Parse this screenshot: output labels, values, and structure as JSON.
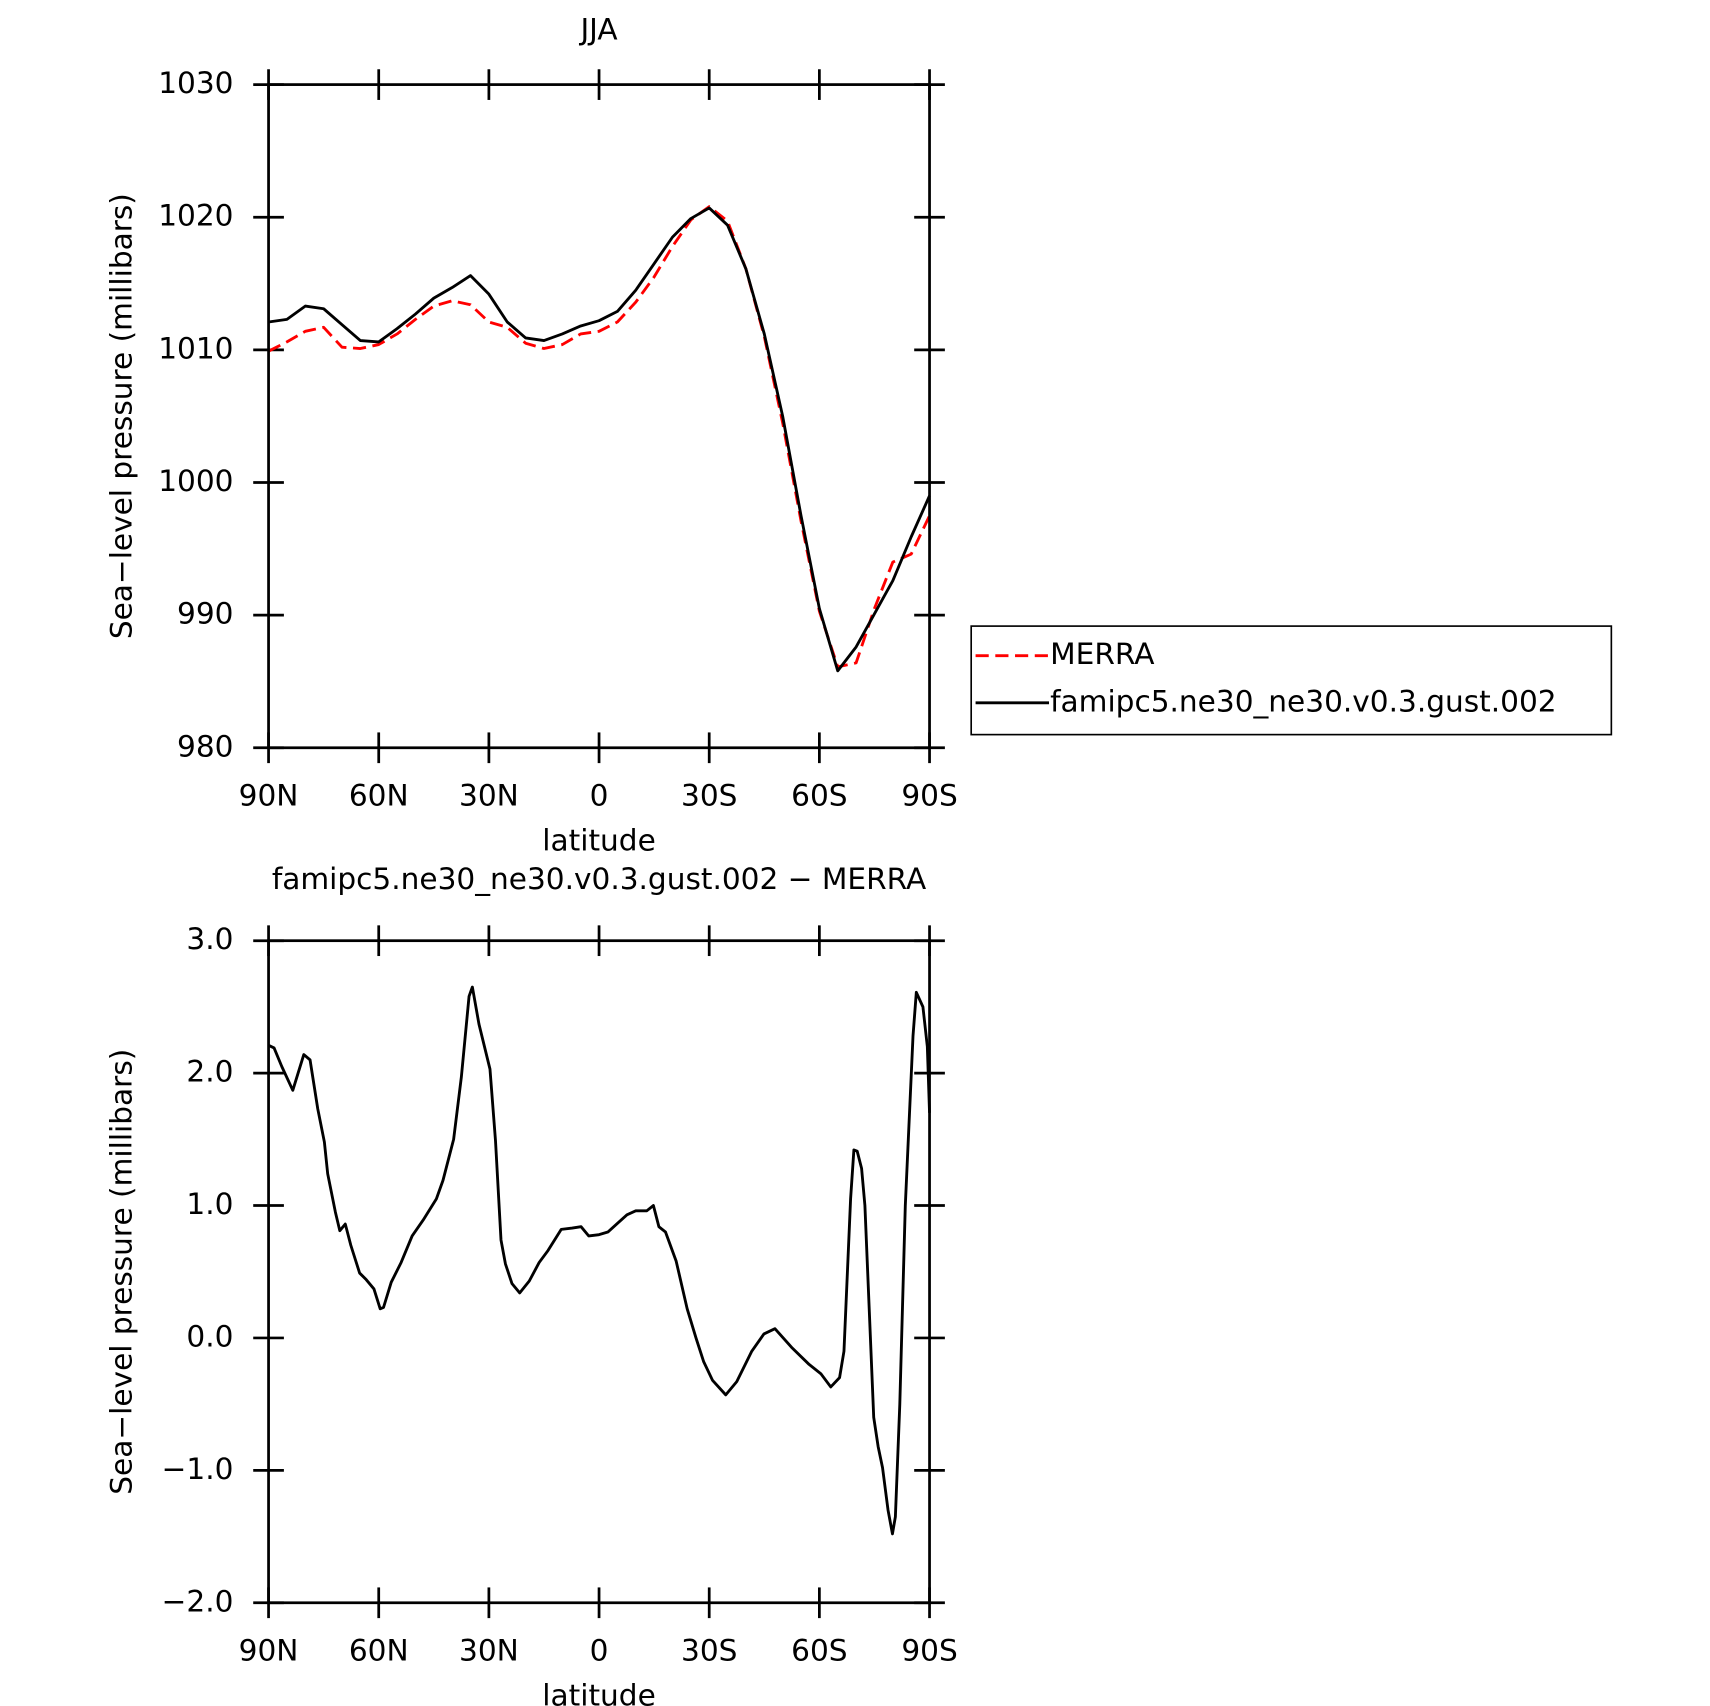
{
  "chart_data": [
    {
      "type": "line",
      "title": "JJA",
      "xlabel": "latitude",
      "ylabel": "Sea−level pressure (millibars)",
      "xlim": [
        90,
        -90
      ],
      "xticks": [
        {
          "value": 90,
          "label": "90N"
        },
        {
          "value": 60,
          "label": "60N"
        },
        {
          "value": 30,
          "label": "30N"
        },
        0,
        {
          "value": -30,
          "label": "30S"
        },
        {
          "value": -60,
          "label": "60S"
        },
        {
          "value": -90,
          "label": "90S"
        }
      ],
      "ylim": [
        980,
        1030
      ],
      "yticks": [
        980,
        990,
        1000,
        1010,
        1020,
        1030
      ],
      "legend": "right",
      "x": [
        90,
        85,
        80,
        75,
        70,
        65,
        60,
        55,
        50,
        45,
        40,
        35,
        30,
        25,
        20,
        15,
        10,
        5,
        0,
        -5,
        -10,
        -15,
        -20,
        -25,
        -30,
        -35,
        -40,
        -45,
        -50,
        -55,
        -60,
        -65,
        -70,
        -75,
        -80,
        -85,
        -90
      ],
      "series": [
        {
          "name": "MERRA",
          "color": "#ff0000",
          "dash": true,
          "values": [
            1009.9,
            1010.6,
            1011.4,
            1011.7,
            1010.2,
            1010.1,
            1010.4,
            1011.2,
            1012.3,
            1013.3,
            1013.7,
            1013.4,
            1012.1,
            1011.7,
            1010.5,
            1010.1,
            1010.4,
            1011.2,
            1011.4,
            1012.1,
            1013.6,
            1015.5,
            1017.8,
            1019.8,
            1020.8,
            1019.7,
            1016.1,
            1011.0,
            1004.5,
            997.1,
            990.3,
            986.1,
            986.4,
            990.5,
            994.0,
            994.6,
            997.5
          ]
        },
        {
          "name": "famipc5.ne30_ne30.v0.3.gust.002",
          "color": "#000000",
          "dash": false,
          "values": [
            1012.1,
            1012.3,
            1013.3,
            1013.1,
            1011.9,
            1010.7,
            1010.6,
            1011.6,
            1012.7,
            1013.9,
            1014.7,
            1015.6,
            1014.2,
            1012.1,
            1010.9,
            1010.7,
            1011.2,
            1011.8,
            1012.2,
            1012.9,
            1014.5,
            1016.5,
            1018.5,
            1019.9,
            1020.7,
            1019.4,
            1016.1,
            1011.2,
            1005.0,
            997.5,
            990.5,
            985.8,
            987.6,
            990.1,
            992.6,
            995.9,
            999.0
          ]
        }
      ]
    },
    {
      "type": "line",
      "title": "famipc5.ne30_ne30.v0.3.gust.002 − MERRA",
      "xlabel": "latitude",
      "ylabel": "Sea−level pressure (millibars)",
      "xlim": [
        90,
        -90
      ],
      "xticks": [
        {
          "value": 90,
          "label": "90N"
        },
        {
          "value": 60,
          "label": "60N"
        },
        {
          "value": 30,
          "label": "30N"
        },
        0,
        {
          "value": -30,
          "label": "30S"
        },
        {
          "value": -60,
          "label": "60S"
        },
        {
          "value": -90,
          "label": "90S"
        }
      ],
      "ylim": [
        -2,
        3
      ],
      "yticks": [
        {
          "value": -2,
          "label": "−2.0"
        },
        {
          "value": -1,
          "label": "−1.0"
        },
        {
          "value": 0,
          "label": "0.0"
        },
        {
          "value": 1,
          "label": "1.0"
        },
        {
          "value": 2,
          "label": "2.0"
        },
        {
          "value": 3,
          "label": "3.0"
        }
      ],
      "x": [
        90,
        88.5,
        86.4,
        83.4,
        80.4,
        78.7,
        76.6,
        74.8,
        73.9,
        71.8,
        70.6,
        69.1,
        67.6,
        65.2,
        63.4,
        61.3,
        59.6,
        58.7,
        56.6,
        53.9,
        50.9,
        47.9,
        44.3,
        42.5,
        39.6,
        37.5,
        35.4,
        34.5,
        32.7,
        29.7,
        28.2,
        26.7,
        25.5,
        23.7,
        21.6,
        19.0,
        16.3,
        13.9,
        10.3,
        7.3,
        4.9,
        2.8,
        0,
        -2.4,
        -4.8,
        -7.6,
        -10,
        -13,
        -14.8,
        -16.3,
        -18.1,
        -21.0,
        -24.0,
        -26.4,
        -28.5,
        -30.9,
        -34.5,
        -37.5,
        -41.6,
        -44.9,
        -47.9,
        -52.4,
        -57.2,
        -60.4,
        -63.1,
        -65.5,
        -66.7,
        -68.5,
        -69.4,
        -70.3,
        -71.5,
        -72.4,
        -74.8,
        -76.0,
        -77.2,
        -78.7,
        -79.9,
        -80.7,
        -81.9,
        -83.4,
        -85.5,
        -86.4,
        -88.2,
        -89.4,
        -90
      ],
      "series": [
        {
          "color": "#000000",
          "dash": false,
          "values": [
            2.21,
            2.19,
            2.05,
            1.87,
            2.14,
            2.1,
            1.73,
            1.48,
            1.24,
            0.95,
            0.81,
            0.86,
            0.7,
            0.49,
            0.44,
            0.37,
            0.22,
            0.23,
            0.42,
            0.57,
            0.77,
            0.89,
            1.05,
            1.19,
            1.5,
            1.97,
            2.58,
            2.65,
            2.37,
            2.03,
            1.49,
            0.74,
            0.56,
            0.41,
            0.34,
            0.43,
            0.57,
            0.66,
            0.82,
            0.83,
            0.84,
            0.77,
            0.78,
            0.8,
            0.86,
            0.93,
            0.96,
            0.96,
            1.0,
            0.84,
            0.8,
            0.58,
            0.22,
            0.0,
            -0.18,
            -0.32,
            -0.43,
            -0.33,
            -0.1,
            0.03,
            0.07,
            -0.07,
            -0.2,
            -0.27,
            -0.37,
            -0.3,
            -0.1,
            1.05,
            1.42,
            1.41,
            1.28,
            1.0,
            -0.6,
            -0.82,
            -0.98,
            -1.3,
            -1.48,
            -1.35,
            -0.5,
            1.0,
            2.28,
            2.61,
            2.5,
            2.2,
            1.7
          ]
        }
      ]
    }
  ]
}
